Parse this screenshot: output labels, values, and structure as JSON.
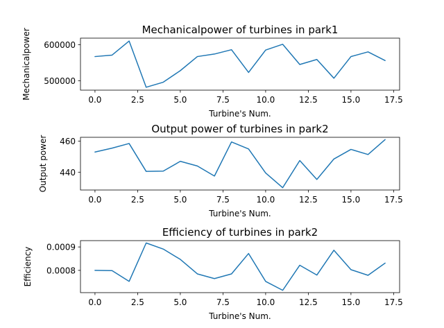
{
  "chart_data": [
    {
      "type": "line",
      "title": "Mechanicalpower of turbines in park1",
      "xlabel": "Turbine's Num.",
      "ylabel": "Mechanicalpower",
      "x": [
        0,
        1,
        2,
        3,
        4,
        5,
        6,
        7,
        8,
        9,
        10,
        11,
        12,
        13,
        14,
        15,
        16,
        17
      ],
      "series": [
        {
          "color": "#1f77b4",
          "values": [
            567000,
            571000,
            610000,
            482000,
            496000,
            528000,
            567000,
            574000,
            586000,
            523000,
            585000,
            601000,
            545000,
            559000,
            507000,
            567000,
            580000,
            556000
          ]
        }
      ],
      "xlim": [
        -0.85,
        17.85
      ],
      "ylim": [
        474000,
        618000
      ],
      "xticks": [
        0,
        2.5,
        5,
        7.5,
        10,
        12.5,
        15,
        17.5
      ],
      "xtick_labels": [
        "0.0",
        "2.5",
        "5.0",
        "7.5",
        "10.0",
        "12.5",
        "15.0",
        "17.5"
      ],
      "yticks": [
        500000,
        600000
      ],
      "ytick_labels": [
        "500000",
        "600000"
      ],
      "grid": false
    },
    {
      "type": "line",
      "title": "Output power of turbines in park2",
      "xlabel": "Turbine's Num.",
      "ylabel": "Output power",
      "x": [
        0,
        1,
        2,
        3,
        4,
        5,
        6,
        7,
        8,
        9,
        10,
        11,
        12,
        13,
        14,
        15,
        16,
        17
      ],
      "series": [
        {
          "color": "#1f77b4",
          "values": [
            453,
            455.5,
            458.5,
            440.5,
            440.7,
            447,
            444,
            437.5,
            459.5,
            455,
            439.5,
            430,
            447.5,
            435.3,
            448.5,
            454.7,
            451.4,
            461
          ]
        }
      ],
      "xlim": [
        -0.85,
        17.85
      ],
      "ylim": [
        428.5,
        462.5
      ],
      "xticks": [
        0,
        2.5,
        5,
        7.5,
        10,
        12.5,
        15,
        17.5
      ],
      "xtick_labels": [
        "0.0",
        "2.5",
        "5.0",
        "7.5",
        "10.0",
        "12.5",
        "15.0",
        "17.5"
      ],
      "yticks": [
        440,
        460
      ],
      "ytick_labels": [
        "440",
        "460"
      ],
      "grid": false
    },
    {
      "type": "line",
      "title": "Efficiency of turbines in park2",
      "xlabel": "Turbine's Num.",
      "ylabel": "Efficiency",
      "x": [
        0,
        1,
        2,
        3,
        4,
        5,
        6,
        7,
        8,
        9,
        10,
        11,
        12,
        13,
        14,
        15,
        16,
        17
      ],
      "series": [
        {
          "color": "#1f77b4",
          "values": [
            0.0008,
            0.000799,
            0.000753,
            0.000917,
            0.000891,
            0.000847,
            0.000785,
            0.000765,
            0.000785,
            0.000872,
            0.000753,
            0.000715,
            0.000822,
            0.00078,
            0.000886,
            0.000803,
            0.000779,
            0.000831
          ]
        }
      ],
      "xlim": [
        -0.85,
        17.85
      ],
      "ylim": [
        0.000705,
        0.000927
      ],
      "xticks": [
        0,
        2.5,
        5,
        7.5,
        10,
        12.5,
        15,
        17.5
      ],
      "xtick_labels": [
        "0.0",
        "2.5",
        "5.0",
        "7.5",
        "10.0",
        "12.5",
        "15.0",
        "17.5"
      ],
      "yticks": [
        0.0008,
        0.0009
      ],
      "ytick_labels": [
        "0.0008",
        "0.0009"
      ],
      "grid": false
    }
  ]
}
